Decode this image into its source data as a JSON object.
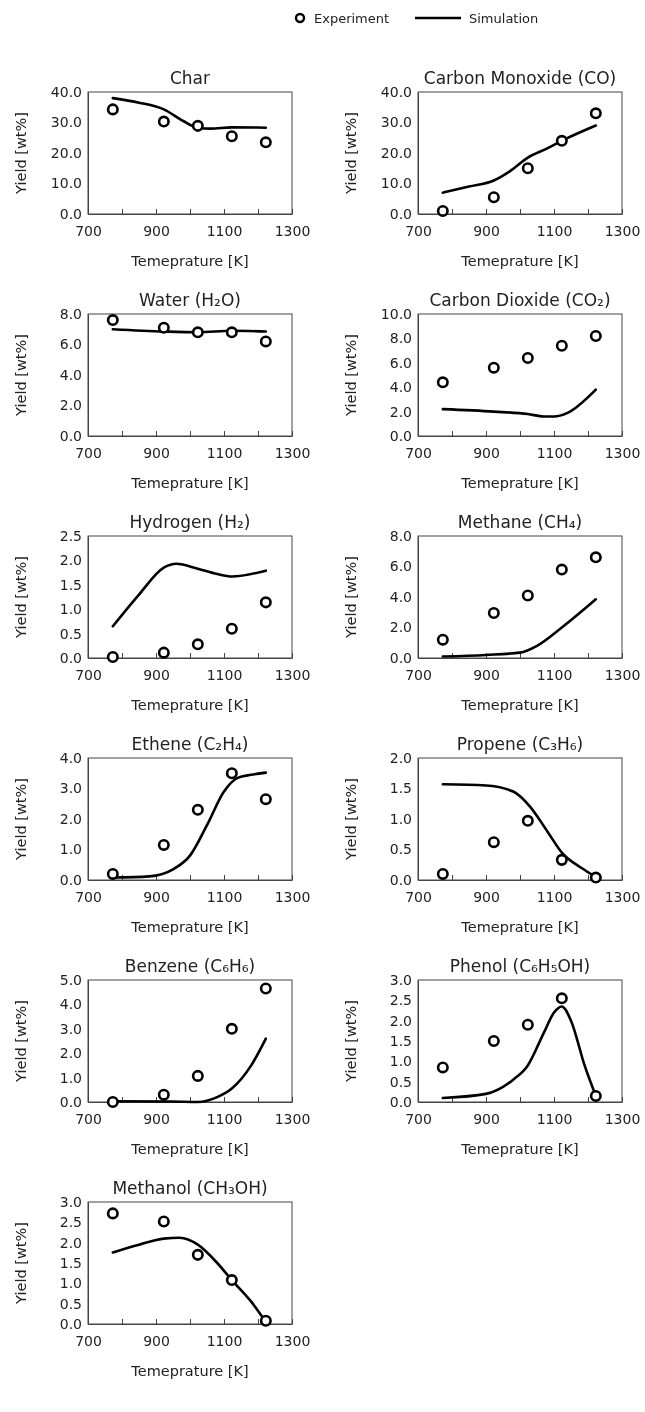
{
  "chart_data": [
    {
      "type": "line",
      "title": "Char",
      "xlabel": "Temeprature [K]",
      "ylabel": "Yield [wt%]",
      "legend": "top",
      "xlim": [
        700,
        1300
      ],
      "xticks": [
        700,
        {
          "value": 800,
          "label": null
        },
        900,
        {
          "value": 1000,
          "label": null
        },
        1100,
        {
          "value": 1200,
          "label": null
        },
        1300
      ],
      "ylim": [
        0,
        40
      ],
      "yticks": [
        {
          "value": 0,
          "label": "0.0"
        },
        {
          "value": 10,
          "label": "10.0"
        },
        {
          "value": 20,
          "label": "20.0"
        },
        {
          "value": 30,
          "label": "30.0"
        },
        {
          "value": 40,
          "label": "40.0"
        }
      ],
      "series": [
        {
          "name": "Experiment",
          "type": "scatter",
          "marker": "circle",
          "color": "#000000",
          "x": [
            773,
            923,
            1023,
            1123,
            1223
          ],
          "values": [
            34.3,
            30.3,
            28.9,
            25.5,
            23.5
          ]
        },
        {
          "name": "Simulation",
          "type": "line",
          "line_style": "solid",
          "color": "#000000",
          "x": [
            773,
            850,
            923,
            980,
            1023,
            1060,
            1123,
            1223
          ],
          "values": [
            38,
            36.5,
            34.3,
            30.5,
            28.3,
            28,
            28.4,
            28.3
          ]
        }
      ]
    },
    {
      "type": "line",
      "title": "Carbon Monoxide (CO)",
      "xlabel": "Temeprature [K]",
      "ylabel": "Yield [wt%]",
      "xlim": [
        700,
        1300
      ],
      "xticks": [
        700,
        {
          "value": 800,
          "label": null
        },
        900,
        {
          "value": 1000,
          "label": null
        },
        1100,
        {
          "value": 1200,
          "label": null
        },
        1300
      ],
      "ylim": [
        0,
        40
      ],
      "yticks": [
        {
          "value": 0,
          "label": "0.0"
        },
        {
          "value": 10,
          "label": "10.0"
        },
        {
          "value": 20,
          "label": "20.0"
        },
        {
          "value": 30,
          "label": "30.0"
        },
        {
          "value": 40,
          "label": "40.0"
        }
      ],
      "series": [
        {
          "type": "scatter",
          "marker": "circle",
          "color": "#000000",
          "x": [
            773,
            923,
            1023,
            1123,
            1223
          ],
          "values": [
            1,
            5.5,
            15,
            24,
            33
          ]
        },
        {
          "type": "line",
          "line_style": "solid",
          "color": "#000000",
          "x": [
            773,
            850,
            923,
            970,
            1023,
            1080,
            1123,
            1223
          ],
          "values": [
            7,
            9,
            11,
            14,
            18.5,
            21.5,
            24,
            29
          ]
        }
      ]
    },
    {
      "type": "line",
      "title": "Water (H₂O)",
      "xlabel": "Temeprature [K]",
      "ylabel": "Yield [wt%]",
      "xlim": [
        700,
        1300
      ],
      "xticks": [
        700,
        {
          "value": 800,
          "label": null
        },
        900,
        {
          "value": 1000,
          "label": null
        },
        1100,
        {
          "value": 1200,
          "label": null
        },
        1300
      ],
      "ylim": [
        0,
        8
      ],
      "yticks": [
        {
          "value": 0,
          "label": "0.0"
        },
        {
          "value": 2,
          "label": "2.0"
        },
        {
          "value": 4,
          "label": "4.0"
        },
        {
          "value": 6,
          "label": "6.0"
        },
        {
          "value": 8,
          "label": "8.0"
        }
      ],
      "series": [
        {
          "type": "scatter",
          "marker": "circle",
          "color": "#000000",
          "x": [
            773,
            923,
            1023,
            1123,
            1223
          ],
          "values": [
            7.6,
            7.1,
            6.8,
            6.8,
            6.2
          ]
        },
        {
          "type": "line",
          "line_style": "solid",
          "color": "#000000",
          "x": [
            773,
            923,
            1023,
            1123,
            1223
          ],
          "values": [
            7,
            6.85,
            6.8,
            6.9,
            6.85
          ]
        }
      ]
    },
    {
      "type": "line",
      "title": "Carbon Dioxide (CO₂)",
      "xlabel": "Temeprature [K]",
      "ylabel": "Yield [wt%]",
      "xlim": [
        700,
        1300
      ],
      "xticks": [
        700,
        {
          "value": 800,
          "label": null
        },
        900,
        {
          "value": 1000,
          "label": null
        },
        1100,
        {
          "value": 1200,
          "label": null
        },
        1300
      ],
      "ylim": [
        0,
        10
      ],
      "yticks": [
        {
          "value": 0,
          "label": "0.0"
        },
        {
          "value": 2,
          "label": "2.0"
        },
        {
          "value": 4,
          "label": "4.0"
        },
        {
          "value": 6,
          "label": "6.0"
        },
        {
          "value": 8,
          "label": "8.0"
        },
        {
          "value": 10,
          "label": "10.0"
        }
      ],
      "series": [
        {
          "type": "scatter",
          "marker": "circle",
          "color": "#000000",
          "x": [
            773,
            923,
            1023,
            1123,
            1223
          ],
          "values": [
            4.4,
            5.6,
            6.4,
            7.4,
            8.2
          ]
        },
        {
          "type": "line",
          "line_style": "solid",
          "color": "#000000",
          "x": [
            773,
            923,
            1023,
            1070,
            1100,
            1140,
            1223
          ],
          "values": [
            2.2,
            2,
            1.8,
            1.6,
            1.6,
            1.9,
            3.8
          ]
        }
      ]
    },
    {
      "type": "line",
      "title": "Hydrogen (H₂)",
      "xlabel": "Temeprature [K]",
      "ylabel": "Yield [wt%]",
      "xlim": [
        700,
        1300
      ],
      "xticks": [
        700,
        {
          "value": 800,
          "label": null
        },
        900,
        {
          "value": 1000,
          "label": null
        },
        1100,
        {
          "value": 1200,
          "label": null
        },
        1300
      ],
      "ylim": [
        0,
        2.5
      ],
      "yticks": [
        {
          "value": 0,
          "label": "0.0"
        },
        0.5,
        {
          "value": 1,
          "label": "1.0"
        },
        1.5,
        {
          "value": 2,
          "label": "2.0"
        },
        2.5
      ],
      "series": [
        {
          "type": "scatter",
          "marker": "circle",
          "color": "#000000",
          "x": [
            773,
            923,
            1023,
            1123,
            1223
          ],
          "values": [
            0.02,
            0.11,
            0.28,
            0.6,
            1.14
          ]
        },
        {
          "type": "line",
          "line_style": "solid",
          "color": "#000000",
          "x": [
            773,
            850,
            923,
            960,
            1023,
            1080,
            1123,
            1223
          ],
          "values": [
            0.65,
            1.3,
            1.85,
            1.93,
            1.83,
            1.72,
            1.67,
            1.79
          ]
        }
      ]
    },
    {
      "type": "line",
      "title": "Methane (CH₄)",
      "xlabel": "Temeprature [K]",
      "ylabel": "Yield [wt%]",
      "xlim": [
        700,
        1300
      ],
      "xticks": [
        700,
        {
          "value": 800,
          "label": null
        },
        900,
        {
          "value": 1000,
          "label": null
        },
        1100,
        {
          "value": 1200,
          "label": null
        },
        1300
      ],
      "ylim": [
        0,
        8
      ],
      "yticks": [
        {
          "value": 0,
          "label": "0.0"
        },
        {
          "value": 2,
          "label": "2.0"
        },
        {
          "value": 4,
          "label": "4.0"
        },
        {
          "value": 6,
          "label": "6.0"
        },
        {
          "value": 8,
          "label": "8.0"
        }
      ],
      "series": [
        {
          "type": "scatter",
          "marker": "circle",
          "color": "#000000",
          "x": [
            773,
            923,
            1023,
            1123,
            1223
          ],
          "values": [
            1.2,
            2.95,
            4.1,
            5.8,
            6.6
          ]
        },
        {
          "type": "line",
          "line_style": "solid",
          "color": "#000000",
          "x": [
            773,
            900,
            1000,
            1050,
            1123,
            1223
          ],
          "values": [
            0.1,
            0.2,
            0.35,
            0.8,
            2,
            3.85
          ]
        }
      ]
    },
    {
      "type": "line",
      "title": "Ethene (C₂H₄)",
      "xlabel": "Temeprature [K]",
      "ylabel": "Yield [wt%]",
      "xlim": [
        700,
        1300
      ],
      "xticks": [
        700,
        {
          "value": 800,
          "label": null
        },
        900,
        {
          "value": 1000,
          "label": null
        },
        1100,
        {
          "value": 1200,
          "label": null
        },
        1300
      ],
      "ylim": [
        0,
        4
      ],
      "yticks": [
        {
          "value": 0,
          "label": "0.0"
        },
        {
          "value": 1,
          "label": "1.0"
        },
        {
          "value": 2,
          "label": "2.0"
        },
        {
          "value": 3,
          "label": "3.0"
        },
        {
          "value": 4,
          "label": "4.0"
        }
      ],
      "series": [
        {
          "type": "scatter",
          "marker": "circle",
          "color": "#000000",
          "x": [
            773,
            923,
            1023,
            1123,
            1223
          ],
          "values": [
            0.2,
            1.15,
            2.3,
            3.5,
            2.65
          ]
        },
        {
          "type": "line",
          "line_style": "solid",
          "color": "#000000",
          "x": [
            773,
            880,
            950,
            1000,
            1050,
            1100,
            1140,
            1180,
            1223
          ],
          "values": [
            0.08,
            0.12,
            0.35,
            0.8,
            1.8,
            2.9,
            3.35,
            3.45,
            3.52
          ]
        }
      ]
    },
    {
      "type": "line",
      "title": "Propene (C₃H₆)",
      "xlabel": "Temeprature [K]",
      "ylabel": "Yield [wt%]",
      "xlim": [
        700,
        1300
      ],
      "xticks": [
        700,
        {
          "value": 800,
          "label": null
        },
        900,
        {
          "value": 1000,
          "label": null
        },
        1100,
        {
          "value": 1200,
          "label": null
        },
        1300
      ],
      "ylim": [
        0,
        2
      ],
      "yticks": [
        {
          "value": 0,
          "label": "0.0"
        },
        0.5,
        {
          "value": 1,
          "label": "1.0"
        },
        1.5,
        {
          "value": 2,
          "label": "2.0"
        }
      ],
      "series": [
        {
          "type": "scatter",
          "marker": "circle",
          "color": "#000000",
          "x": [
            773,
            923,
            1023,
            1123,
            1223
          ],
          "values": [
            0.1,
            0.62,
            0.97,
            0.33,
            0.04
          ]
        },
        {
          "type": "line",
          "line_style": "solid",
          "color": "#000000",
          "x": [
            773,
            900,
            980,
            1030,
            1080,
            1123,
            1180,
            1223
          ],
          "values": [
            1.57,
            1.55,
            1.45,
            1.2,
            0.8,
            0.45,
            0.2,
            0.05
          ]
        }
      ]
    },
    {
      "type": "line",
      "title": "Benzene (C₆H₆)",
      "xlabel": "Temeprature [K]",
      "ylabel": "Yield [wt%]",
      "xlim": [
        700,
        1300
      ],
      "xticks": [
        700,
        {
          "value": 800,
          "label": null
        },
        900,
        {
          "value": 1000,
          "label": null
        },
        1100,
        {
          "value": 1200,
          "label": null
        },
        1300
      ],
      "ylim": [
        0,
        5
      ],
      "yticks": [
        {
          "value": 0,
          "label": "0.0"
        },
        {
          "value": 1,
          "label": "1.0"
        },
        {
          "value": 2,
          "label": "2.0"
        },
        {
          "value": 3,
          "label": "3.0"
        },
        {
          "value": 4,
          "label": "4.0"
        },
        {
          "value": 5,
          "label": "5.0"
        }
      ],
      "series": [
        {
          "type": "scatter",
          "marker": "circle",
          "color": "#000000",
          "x": [
            773,
            923,
            1023,
            1123,
            1223
          ],
          "values": [
            0,
            0.3,
            1.07,
            3,
            4.65
          ]
        },
        {
          "type": "line",
          "line_style": "solid",
          "color": "#000000",
          "x": [
            773,
            950,
            1023,
            1080,
            1123,
            1180,
            1223
          ],
          "values": [
            0.03,
            0.02,
            0,
            0.2,
            0.55,
            1.5,
            2.6
          ]
        }
      ]
    },
    {
      "type": "line",
      "title": "Phenol (C₆H₅OH)",
      "xlabel": "Temeprature [K]",
      "ylabel": "Yield [wt%]",
      "xlim": [
        700,
        1300
      ],
      "xticks": [
        700,
        {
          "value": 800,
          "label": null
        },
        900,
        {
          "value": 1000,
          "label": null
        },
        1100,
        {
          "value": 1200,
          "label": null
        },
        1300
      ],
      "ylim": [
        0,
        3
      ],
      "yticks": [
        {
          "value": 0,
          "label": "0.0"
        },
        0.5,
        {
          "value": 1,
          "label": "1.0"
        },
        1.5,
        {
          "value": 2,
          "label": "2.0"
        },
        2.5,
        {
          "value": 3,
          "label": "3.0"
        }
      ],
      "series": [
        {
          "type": "scatter",
          "marker": "circle",
          "color": "#000000",
          "x": [
            773,
            923,
            1023,
            1123,
            1223
          ],
          "values": [
            0.85,
            1.5,
            1.9,
            2.55,
            0.15
          ]
        },
        {
          "type": "line",
          "line_style": "solid",
          "color": "#000000",
          "x": [
            773,
            900,
            980,
            1023,
            1070,
            1100,
            1123,
            1150,
            1190,
            1223
          ],
          "values": [
            0.1,
            0.2,
            0.55,
            0.9,
            1.7,
            2.2,
            2.35,
            2,
            0.9,
            0.15
          ]
        }
      ]
    },
    {
      "type": "line",
      "title": "Methanol (CH₃OH)",
      "xlabel": "Temeprature [K]",
      "ylabel": "Yield [wt%]",
      "xlim": [
        700,
        1300
      ],
      "xticks": [
        700,
        {
          "value": 800,
          "label": null
        },
        900,
        {
          "value": 1000,
          "label": null
        },
        1100,
        {
          "value": 1200,
          "label": null
        },
        1300
      ],
      "ylim": [
        0,
        3
      ],
      "yticks": [
        {
          "value": 0,
          "label": "0.0"
        },
        0.5,
        {
          "value": 1,
          "label": "1.0"
        },
        1.5,
        {
          "value": 2,
          "label": "2.0"
        },
        2.5,
        {
          "value": 3,
          "label": "3.0"
        }
      ],
      "series": [
        {
          "type": "scatter",
          "marker": "circle",
          "color": "#000000",
          "x": [
            773,
            923,
            1023,
            1123,
            1223
          ],
          "values": [
            2.72,
            2.52,
            1.7,
            1.08,
            0.08
          ]
        },
        {
          "type": "line",
          "line_style": "solid",
          "color": "#000000",
          "x": [
            773,
            850,
            923,
            970,
            1023,
            1080,
            1123,
            1180,
            1223
          ],
          "values": [
            1.76,
            1.95,
            2.1,
            2.12,
            1.95,
            1.5,
            1.08,
            0.55,
            0.05
          ]
        }
      ]
    }
  ]
}
